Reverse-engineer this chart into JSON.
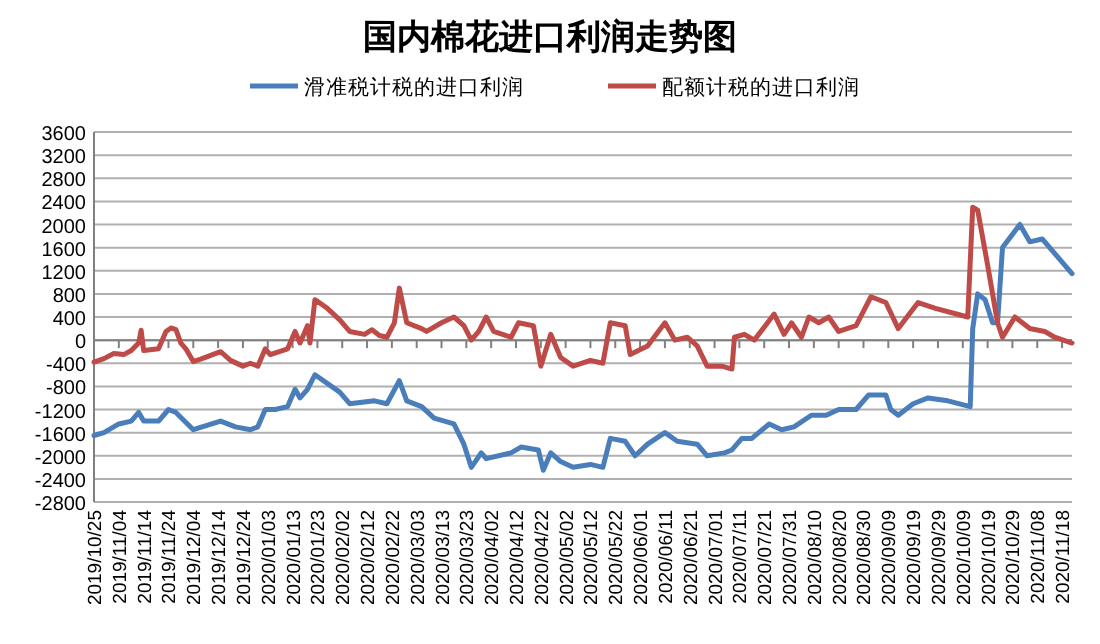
{
  "chart_data": {
    "type": "line",
    "title": "国内棉花进口利润走势图",
    "legend": "top",
    "grid": "y",
    "line_style": "solid",
    "marker": "none",
    "xlim": [
      "2019-10-25",
      "2020-11-22"
    ],
    "ylim": [
      -2800,
      3600
    ],
    "yticks": [
      -2800,
      -2400,
      -2000,
      -1600,
      -1200,
      -800,
      -400,
      0,
      400,
      800,
      1200,
      1600,
      2000,
      2400,
      2800,
      3200,
      3600
    ],
    "xticks": [
      {
        "value": "2019-10-25",
        "label": "2019/10/25"
      },
      {
        "value": "2019-11-04",
        "label": "2019/11/04"
      },
      {
        "value": "2019-11-14",
        "label": "2019/11/14"
      },
      {
        "value": "2019-11-24",
        "label": "2019/11/24"
      },
      {
        "value": "2019-12-04",
        "label": "2019/12/04"
      },
      {
        "value": "2019-12-14",
        "label": "2019/12/14"
      },
      {
        "value": "2019-12-24",
        "label": "2019/12/24"
      },
      {
        "value": "2020-01-03",
        "label": "2020/01/03"
      },
      {
        "value": "2020-01-13",
        "label": "2020/01/13"
      },
      {
        "value": "2020-01-23",
        "label": "2020/01/23"
      },
      {
        "value": "2020-02-02",
        "label": "2020/02/02"
      },
      {
        "value": "2020-02-12",
        "label": "2020/02/12"
      },
      {
        "value": "2020-02-22",
        "label": "2020/02/22"
      },
      {
        "value": "2020-03-03",
        "label": "2020/03/03"
      },
      {
        "value": "2020-03-13",
        "label": "2020/03/13"
      },
      {
        "value": "2020-03-23",
        "label": "2020/03/23"
      },
      {
        "value": "2020-04-02",
        "label": "2020/04/02"
      },
      {
        "value": "2020-04-12",
        "label": "2020/04/12"
      },
      {
        "value": "2020-04-22",
        "label": "2020/04/22"
      },
      {
        "value": "2020-05-02",
        "label": "2020/05/02"
      },
      {
        "value": "2020-05-12",
        "label": "2020/05/12"
      },
      {
        "value": "2020-05-22",
        "label": "2020/05/22"
      },
      {
        "value": "2020-06-01",
        "label": "2020/06/01"
      },
      {
        "value": "2020-06-11",
        "label": "2020/06/11"
      },
      {
        "value": "2020-06-21",
        "label": "2020/06/21"
      },
      {
        "value": "2020-07-01",
        "label": "2020/07/01"
      },
      {
        "value": "2020-07-11",
        "label": "2020/07/11"
      },
      {
        "value": "2020-07-21",
        "label": "2020/07/21"
      },
      {
        "value": "2020-07-31",
        "label": "2020/07/31"
      },
      {
        "value": "2020-08-10",
        "label": "2020/08/10"
      },
      {
        "value": "2020-08-20",
        "label": "2020/08/20"
      },
      {
        "value": "2020-08-30",
        "label": "2020/08/30"
      },
      {
        "value": "2020-09-09",
        "label": "2020/09/09"
      },
      {
        "value": "2020-09-19",
        "label": "2020/09/19"
      },
      {
        "value": "2020-09-29",
        "label": "2020/09/29"
      },
      {
        "value": "2020-10-09",
        "label": "2020/10/09"
      },
      {
        "value": "2020-10-19",
        "label": "2020/10/19"
      },
      {
        "value": "2020-10-29",
        "label": "2020/10/29"
      },
      {
        "value": "2020-11-08",
        "label": "2020/11/08"
      },
      {
        "value": "2020-11-18",
        "label": "2020/11/18"
      }
    ],
    "series": [
      {
        "name": "滑准税计税的进口利润",
        "color": "#4a7ebb",
        "x": [
          "2019-10-25",
          "2019-10-29",
          "2019-11-04",
          "2019-11-09",
          "2019-11-12",
          "2019-11-14",
          "2019-11-20",
          "2019-11-24",
          "2019-11-27",
          "2019-12-04",
          "2019-12-15",
          "2019-12-21",
          "2019-12-27",
          "2019-12-30",
          "2020-01-02",
          "2020-01-06",
          "2020-01-11",
          "2020-01-14",
          "2020-01-16",
          "2020-01-19",
          "2020-01-22",
          "2020-02-01",
          "2020-02-05",
          "2020-02-15",
          "2020-02-20",
          "2020-02-25",
          "2020-02-28",
          "2020-03-05",
          "2020-03-10",
          "2020-03-18",
          "2020-03-22",
          "2020-03-25",
          "2020-03-29",
          "2020-03-31",
          "2020-04-10",
          "2020-04-14",
          "2020-04-21",
          "2020-04-23",
          "2020-04-26",
          "2020-04-30",
          "2020-05-05",
          "2020-05-12",
          "2020-05-17",
          "2020-05-20",
          "2020-05-26",
          "2020-05-30",
          "2020-06-04",
          "2020-06-11",
          "2020-06-16",
          "2020-06-24",
          "2020-06-28",
          "2020-07-05",
          "2020-07-08",
          "2020-07-12",
          "2020-07-16",
          "2020-07-23",
          "2020-07-28",
          "2020-08-02",
          "2020-08-09",
          "2020-08-15",
          "2020-08-20",
          "2020-08-27",
          "2020-09-01",
          "2020-09-08",
          "2020-09-10",
          "2020-09-13",
          "2020-09-19",
          "2020-09-25",
          "2020-10-03",
          "2020-10-12",
          "2020-10-13",
          "2020-10-15",
          "2020-10-18",
          "2020-10-21",
          "2020-10-23",
          "2020-10-25",
          "2020-11-01",
          "2020-11-05",
          "2020-11-10",
          "2020-11-15",
          "2020-11-22"
        ],
        "values": [
          -1650,
          -1600,
          -1450,
          -1400,
          -1250,
          -1400,
          -1400,
          -1200,
          -1250,
          -1550,
          -1400,
          -1500,
          -1550,
          -1500,
          -1200,
          -1200,
          -1150,
          -850,
          -1000,
          -850,
          -600,
          -900,
          -1100,
          -1050,
          -1100,
          -700,
          -1050,
          -1150,
          -1350,
          -1450,
          -1800,
          -2200,
          -1950,
          -2050,
          -1950,
          -1850,
          -1900,
          -2250,
          -1950,
          -2100,
          -2200,
          -2150,
          -2200,
          -1700,
          -1750,
          -2000,
          -1800,
          -1600,
          -1750,
          -1800,
          -2000,
          -1950,
          -1900,
          -1700,
          -1700,
          -1450,
          -1550,
          -1500,
          -1300,
          -1300,
          -1200,
          -1200,
          -950,
          -950,
          -1200,
          -1300,
          -1100,
          -1000,
          -1050,
          -1150,
          200,
          800,
          700,
          300,
          300,
          1600,
          2000,
          1700,
          1750,
          1500,
          1150
        ]
      },
      {
        "name": "配额计税的进口利润",
        "color": "#be4b48",
        "x": [
          "2019-10-25",
          "2019-10-29",
          "2019-11-02",
          "2019-11-06",
          "2019-11-09",
          "2019-11-12",
          "2019-11-13",
          "2019-11-14",
          "2019-11-20",
          "2019-11-23",
          "2019-11-25",
          "2019-11-27",
          "2019-11-29",
          "2019-12-01",
          "2019-12-04",
          "2019-12-07",
          "2019-12-15",
          "2019-12-19",
          "2019-12-24",
          "2019-12-27",
          "2019-12-30",
          "2020-01-02",
          "2020-01-04",
          "2020-01-11",
          "2020-01-14",
          "2020-01-16",
          "2020-01-19",
          "2020-01-20",
          "2020-01-22",
          "2020-01-27",
          "2020-02-01",
          "2020-02-05",
          "2020-02-11",
          "2020-02-14",
          "2020-02-17",
          "2020-02-20",
          "2020-02-23",
          "2020-02-25",
          "2020-02-28",
          "2020-03-05",
          "2020-03-07",
          "2020-03-13",
          "2020-03-18",
          "2020-03-22",
          "2020-03-25",
          "2020-03-28",
          "2020-03-31",
          "2020-04-03",
          "2020-04-10",
          "2020-04-13",
          "2020-04-19",
          "2020-04-22",
          "2020-04-26",
          "2020-04-30",
          "2020-05-05",
          "2020-05-12",
          "2020-05-17",
          "2020-05-20",
          "2020-05-26",
          "2020-05-28",
          "2020-06-04",
          "2020-06-11",
          "2020-06-15",
          "2020-06-20",
          "2020-06-24",
          "2020-06-28",
          "2020-07-04",
          "2020-07-08",
          "2020-07-09",
          "2020-07-13",
          "2020-07-17",
          "2020-07-25",
          "2020-07-29",
          "2020-08-01",
          "2020-08-05",
          "2020-08-08",
          "2020-08-12",
          "2020-08-16",
          "2020-08-20",
          "2020-08-27",
          "2020-09-02",
          "2020-09-08",
          "2020-09-13",
          "2020-09-21",
          "2020-09-28",
          "2020-10-11",
          "2020-10-13",
          "2020-10-15",
          "2020-10-19",
          "2020-10-23",
          "2020-10-25",
          "2020-10-30",
          "2020-11-05",
          "2020-11-11",
          "2020-11-15",
          "2020-11-22"
        ],
        "values": [
          -380,
          -320,
          -230,
          -250,
          -180,
          -50,
          170,
          -180,
          -150,
          150,
          210,
          180,
          -50,
          -150,
          -370,
          -330,
          -200,
          -350,
          -450,
          -400,
          -450,
          -150,
          -250,
          -150,
          150,
          -50,
          250,
          -50,
          700,
          550,
          350,
          150,
          100,
          180,
          80,
          50,
          300,
          900,
          300,
          200,
          150,
          300,
          400,
          250,
          0,
          150,
          400,
          150,
          50,
          300,
          250,
          -450,
          100,
          -300,
          -450,
          -350,
          -400,
          300,
          250,
          -250,
          -100,
          300,
          0,
          50,
          -100,
          -450,
          -450,
          -500,
          50,
          100,
          0,
          450,
          100,
          300,
          50,
          400,
          300,
          400,
          150,
          250,
          750,
          650,
          200,
          650,
          550,
          400,
          2300,
          2250,
          1300,
          300,
          50,
          400,
          200,
          150,
          50,
          -50
        ]
      }
    ]
  }
}
